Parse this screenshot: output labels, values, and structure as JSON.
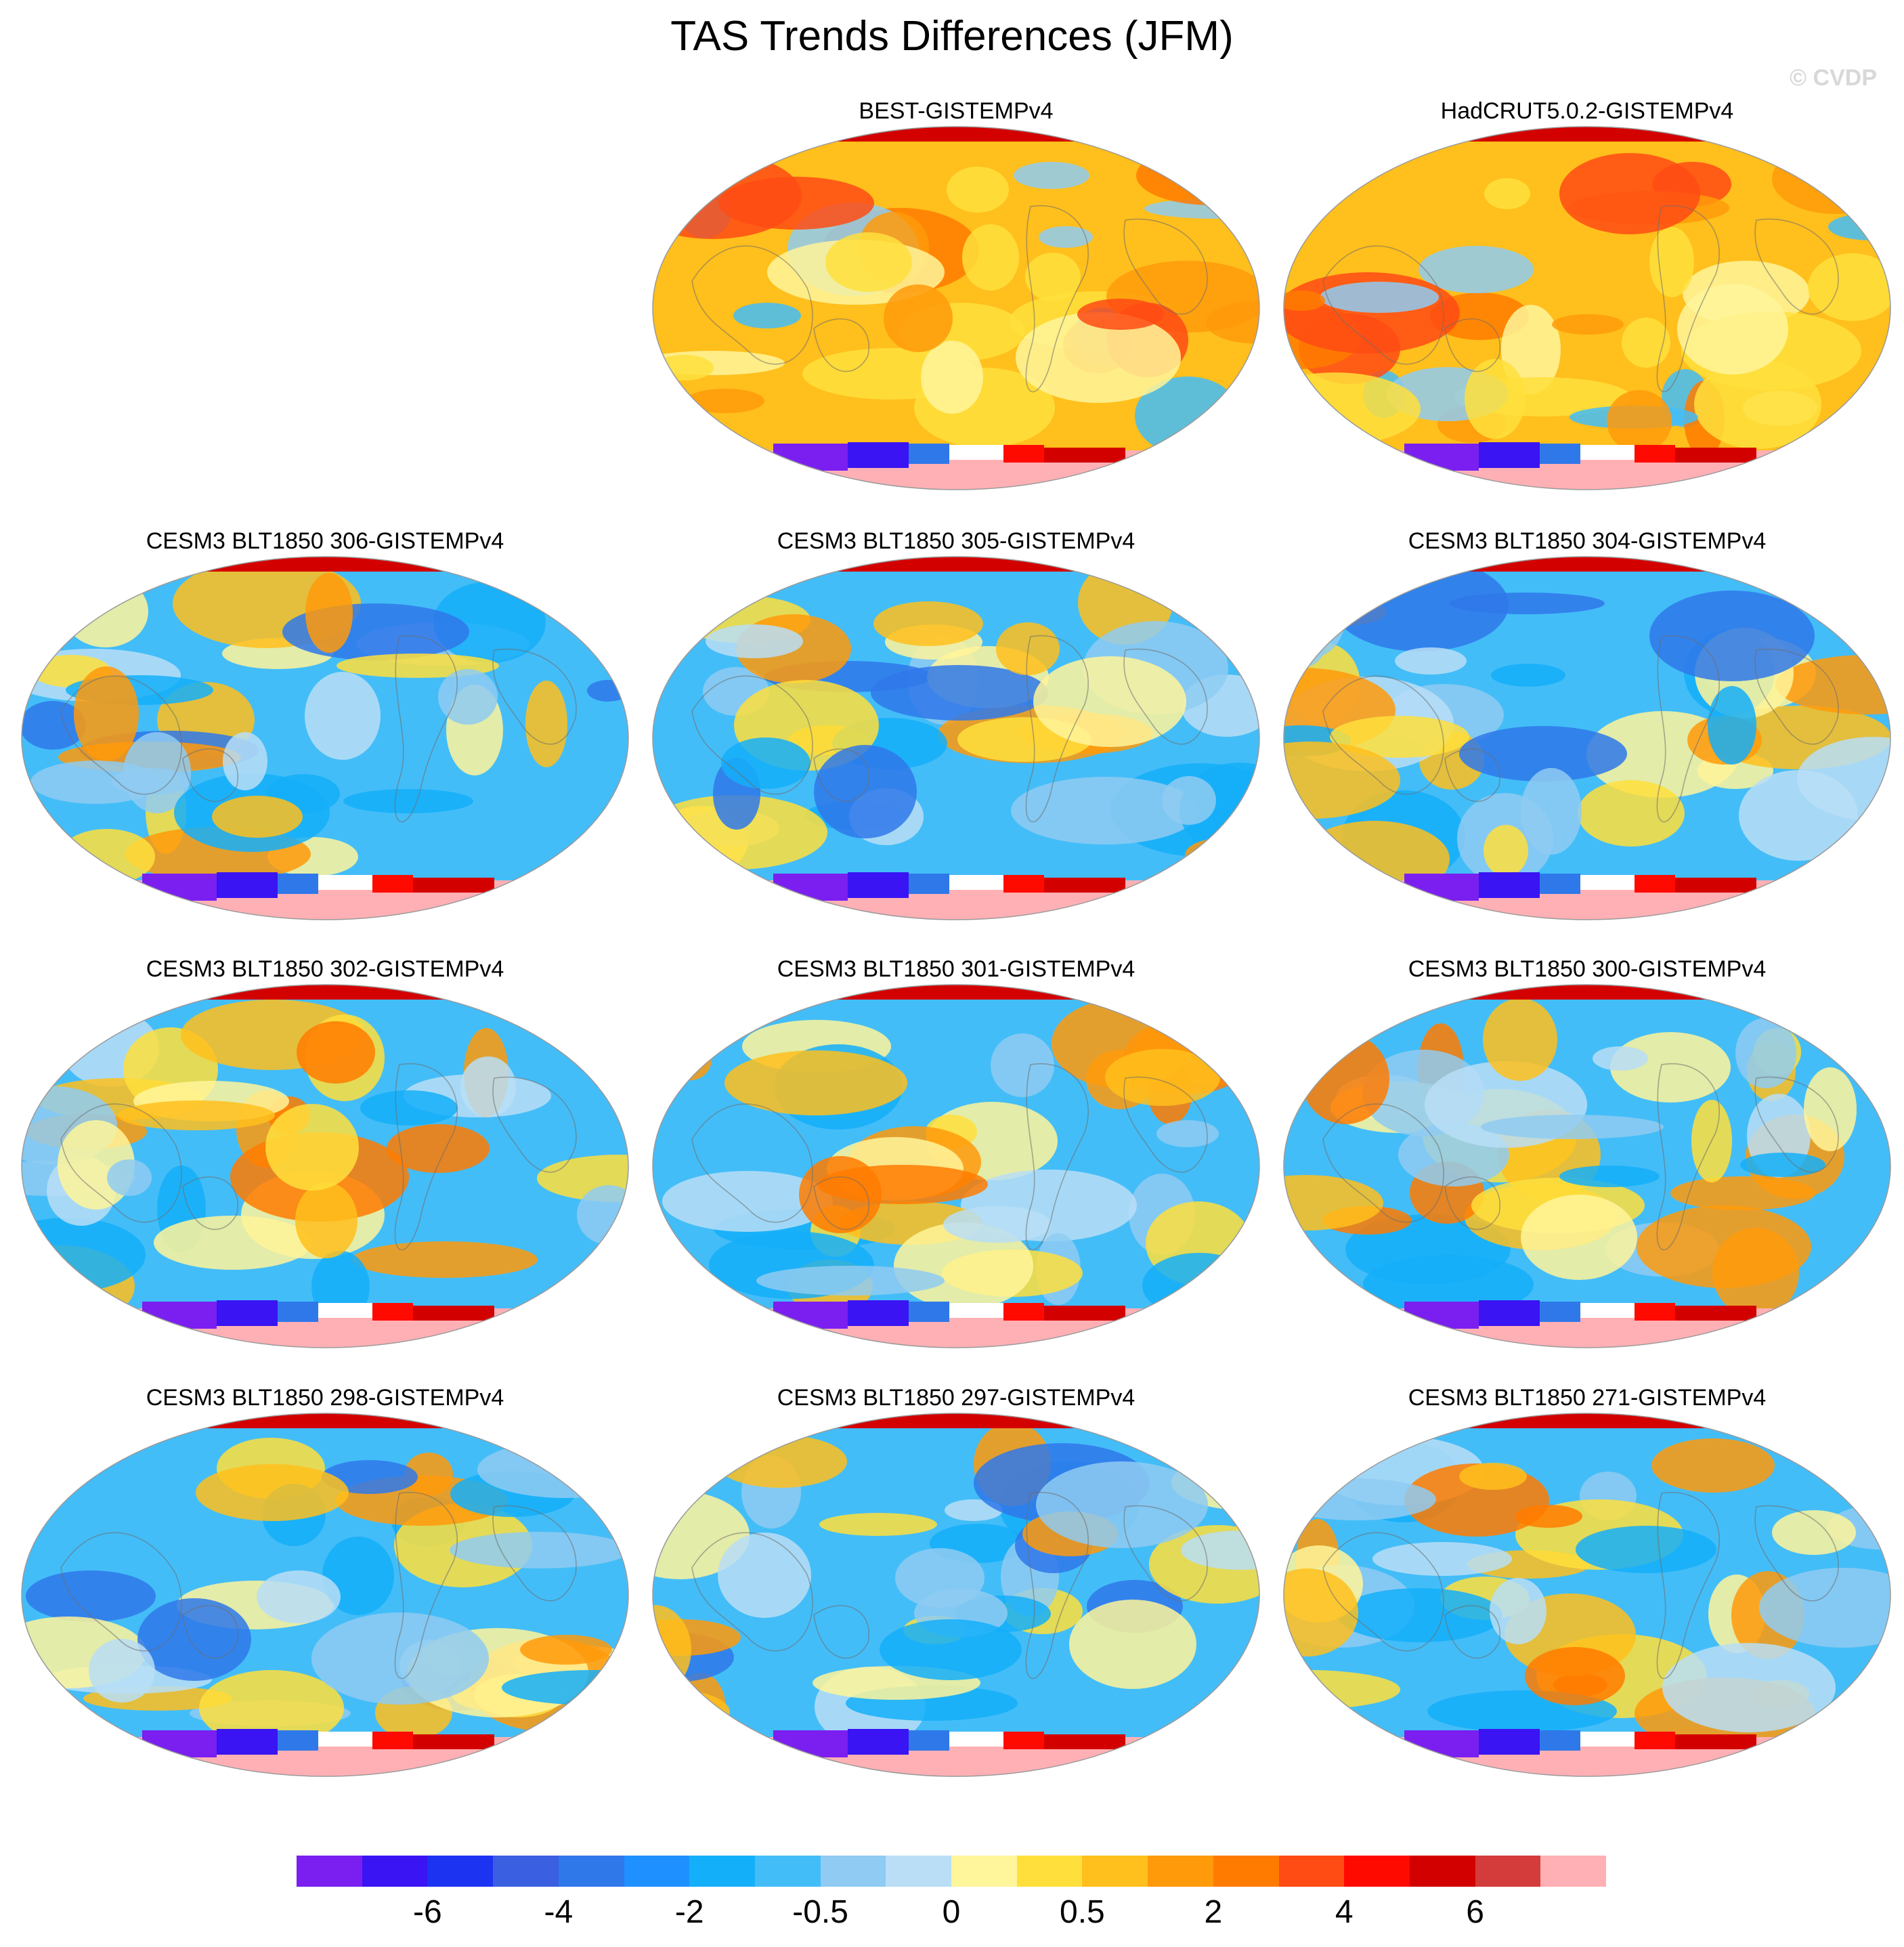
{
  "title": "TAS Trends Differences (JFM)",
  "watermark": "© CVDP",
  "panels": [
    {
      "label": "BEST-GISTEMPv4",
      "row": 0,
      "col": 1,
      "scheme": "warm"
    },
    {
      "label": "HadCRUT5.0.2-GISTEMPv4",
      "row": 0,
      "col": 2,
      "scheme": "warm"
    },
    {
      "label": "CESM3 BLT1850 306-GISTEMPv4",
      "row": 1,
      "col": 0,
      "scheme": "cool"
    },
    {
      "label": "CESM3 BLT1850 305-GISTEMPv4",
      "row": 1,
      "col": 1,
      "scheme": "cool"
    },
    {
      "label": "CESM3 BLT1850 304-GISTEMPv4",
      "row": 1,
      "col": 2,
      "scheme": "cool"
    },
    {
      "label": "CESM3 BLT1850 302-GISTEMPv4",
      "row": 2,
      "col": 0,
      "scheme": "mixed"
    },
    {
      "label": "CESM3 BLT1850 301-GISTEMPv4",
      "row": 2,
      "col": 1,
      "scheme": "mixed"
    },
    {
      "label": "CESM3 BLT1850 300-GISTEMPv4",
      "row": 2,
      "col": 2,
      "scheme": "mixed"
    },
    {
      "label": "CESM3 BLT1850 298-GISTEMPv4",
      "row": 3,
      "col": 0,
      "scheme": "cool"
    },
    {
      "label": "CESM3 BLT1850 297-GISTEMPv4",
      "row": 3,
      "col": 1,
      "scheme": "cool"
    },
    {
      "label": "CESM3 BLT1850 271-GISTEMPv4",
      "row": 3,
      "col": 2,
      "scheme": "mixed"
    }
  ],
  "colorbar": {
    "colors": [
      "#7a1ff0",
      "#3a14f2",
      "#1c33f2",
      "#3a5fe0",
      "#2f78ea",
      "#1e90ff",
      "#14aff9",
      "#43bdf8",
      "#8fcbf2",
      "#b9def6",
      "#fff59a",
      "#ffdf3c",
      "#ffbf1c",
      "#ff9a0a",
      "#ff7b00",
      "#ff4b14",
      "#ff0a00",
      "#d30000",
      "#d43b3b",
      "#ffb0b5"
    ],
    "tick_labels": [
      "-6",
      "-4",
      "-2",
      "-0.5",
      "0",
      "0.5",
      "2",
      "4",
      "6"
    ]
  }
}
